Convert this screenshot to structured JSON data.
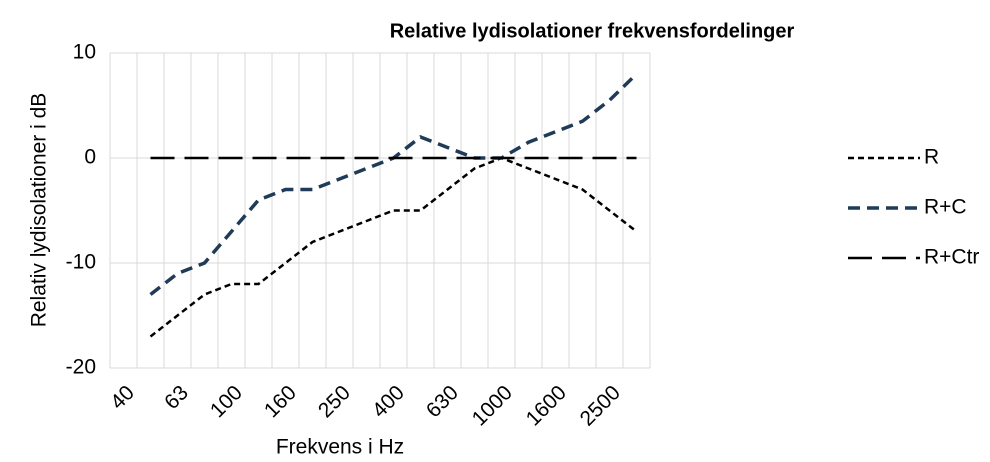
{
  "chart_data": {
    "type": "line",
    "title": "Relative lydisolationer frekvensfordelinger",
    "xlabel": "Frekvens i Hz",
    "ylabel": "Relativ lydisolationer i dB",
    "categories": [
      "40",
      null,
      "63",
      null,
      "100",
      null,
      "160",
      null,
      "250",
      null,
      "400",
      null,
      "630",
      null,
      "1000",
      null,
      "1600",
      null,
      "2500",
      null
    ],
    "series": [
      {
        "name": "R",
        "color": "#000000",
        "values": [
          null,
          -17,
          -15,
          -13,
          -12,
          -12,
          -10,
          -8,
          -7,
          -6,
          -5,
          -5,
          -3,
          -1,
          0,
          -1,
          -2,
          -3,
          -5,
          -7
        ]
      },
      {
        "name": "R+C",
        "color": "#1f3b57",
        "values": [
          null,
          -13,
          -11,
          -10,
          -7,
          -4,
          -3,
          -3,
          -2,
          -1,
          0,
          2,
          1,
          0,
          0,
          1.5,
          2.5,
          3.5,
          5.5,
          8
        ]
      },
      {
        "name": "R+Ctr",
        "color": "#000000",
        "values": [
          null,
          0,
          0,
          0,
          0,
          0,
          0,
          0,
          0,
          0,
          0,
          0,
          0,
          0,
          0,
          0,
          0,
          0,
          0,
          0
        ]
      }
    ],
    "ylim": [
      -20,
      10
    ],
    "yticks": [
      -20,
      -10,
      0,
      10
    ],
    "grid": true,
    "legend": "right"
  }
}
